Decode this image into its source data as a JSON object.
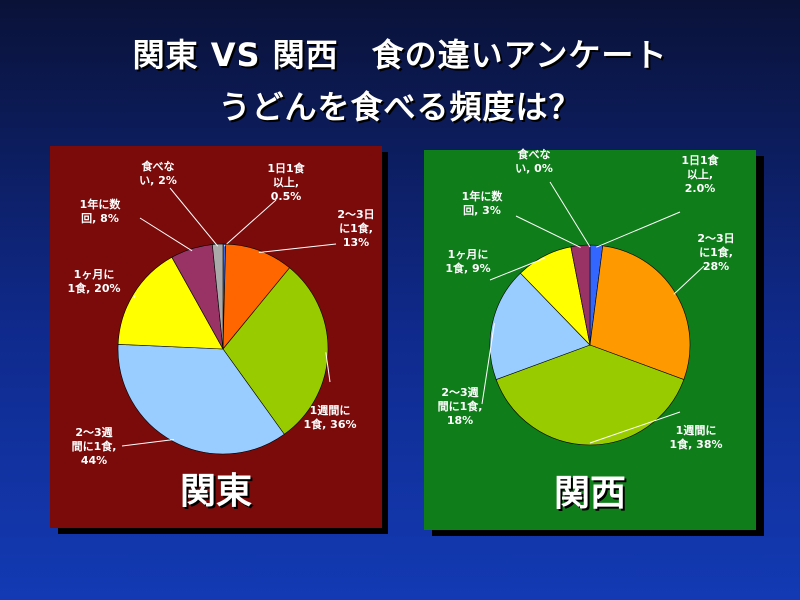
{
  "header": {
    "title_line1": "関東 VS 関西　食の違いアンケート",
    "title_line2": "うどんを食べる頻度は？"
  },
  "chart_data": [
    {
      "type": "pie",
      "region": "関東",
      "background": "#7b0b0b",
      "slices": [
        {
          "label": [
            "1日1食",
            "以上,",
            "0.5%"
          ],
          "value": 0.5,
          "color": "#4169e1"
        },
        {
          "label": [
            "2〜3日",
            "に1食,",
            "13%"
          ],
          "value": 13,
          "color": "#ff6600"
        },
        {
          "label": [
            "1週間に",
            "1食, 36%"
          ],
          "value": 36,
          "color": "#99cc00"
        },
        {
          "label": [
            "2〜3週",
            "間に1食,",
            "44%"
          ],
          "value": 44,
          "color": "#99ccff"
        },
        {
          "label": [
            "1ヶ月に",
            "1食, 20%"
          ],
          "value": 20,
          "color": "#ffff00"
        },
        {
          "label": [
            "1年に数",
            "回, 8%"
          ],
          "value": 8,
          "color": "#993366"
        },
        {
          "label": [
            "食べな",
            "い, 2%"
          ],
          "value": 2,
          "color": "#aaaaaa"
        }
      ]
    },
    {
      "type": "pie",
      "region": "関西",
      "background": "#0f7d1a",
      "slices": [
        {
          "label": [
            "1日1食",
            "以上,",
            "2.0%"
          ],
          "value": 2.0,
          "color": "#3366ff"
        },
        {
          "label": [
            "2〜3日",
            "に1食,",
            "28%"
          ],
          "value": 28,
          "color": "#ff9900"
        },
        {
          "label": [
            "1週間に",
            "1食, 38%"
          ],
          "value": 38,
          "color": "#99cc00"
        },
        {
          "label": [
            "2〜3週",
            "間に1食,",
            "18%"
          ],
          "value": 18,
          "color": "#99ccff"
        },
        {
          "label": [
            "1ヶ月に",
            "1食, 9%"
          ],
          "value": 9,
          "color": "#ffff00"
        },
        {
          "label": [
            "1年に数",
            "回, 3%"
          ],
          "value": 3,
          "color": "#993366"
        },
        {
          "label": [
            "食べな",
            "い, 0%"
          ],
          "value": 0,
          "color": "#aaaaaa"
        }
      ]
    }
  ]
}
